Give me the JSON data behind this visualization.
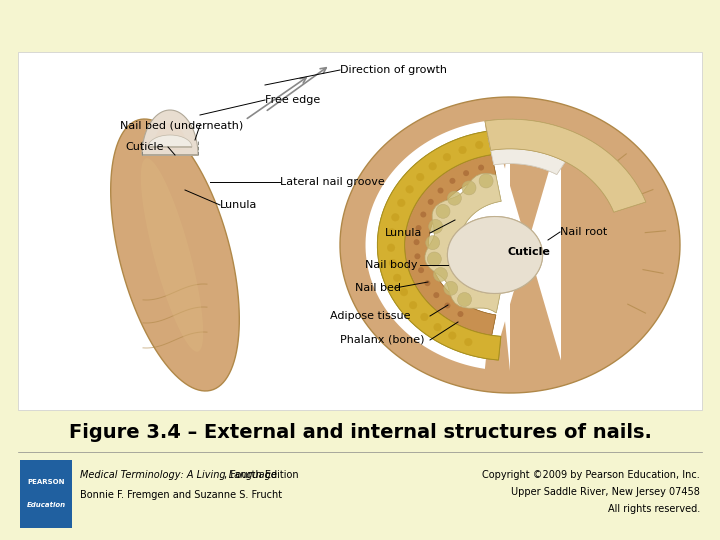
{
  "background_color": "#f5f5d0",
  "panel_bg": "#ffffff",
  "title": "Figure 3.4 – External and internal structures of nails.",
  "title_fontsize": 14,
  "title_bold": true,
  "title_color": "#000000",
  "footer_left_line1_italic": "Medical Terminology: A Living Language",
  "footer_left_line1_normal": ", Fourth Edition",
  "footer_left_line2": "Bonnie F. Fremgen and Suzanne S. Frucht",
  "footer_right_line1": "Copyright ©2009 by Pearson Education, Inc.",
  "footer_right_line2": "Upper Saddle River, New Jersey 07458",
  "footer_right_line3": "All rights reserved.",
  "footer_fontsize": 7,
  "pearson_box_color": "#2060a0",
  "finger_color": "#d4a878",
  "finger_edge": "#b08848",
  "nail_plate_color": "#e8ddd0",
  "nail_plate_edge": "#b0a898",
  "lunula_color": "#f0ece4",
  "nail_gold": "#d4b030",
  "nail_gold_edge": "#a89020",
  "nailbed_color": "#c89050",
  "nailbed_edge": "#a07030",
  "bone_color": "#e8e0d0",
  "bone_edge": "#c0b090",
  "adipose_color": "#e0d0a0",
  "adipose_edge": "#b8a870",
  "cuticle_color": "#e0c890",
  "cuticle_edge": "#b8a060",
  "white_area_color": "#f8f4ec",
  "label_fontsize": 8
}
